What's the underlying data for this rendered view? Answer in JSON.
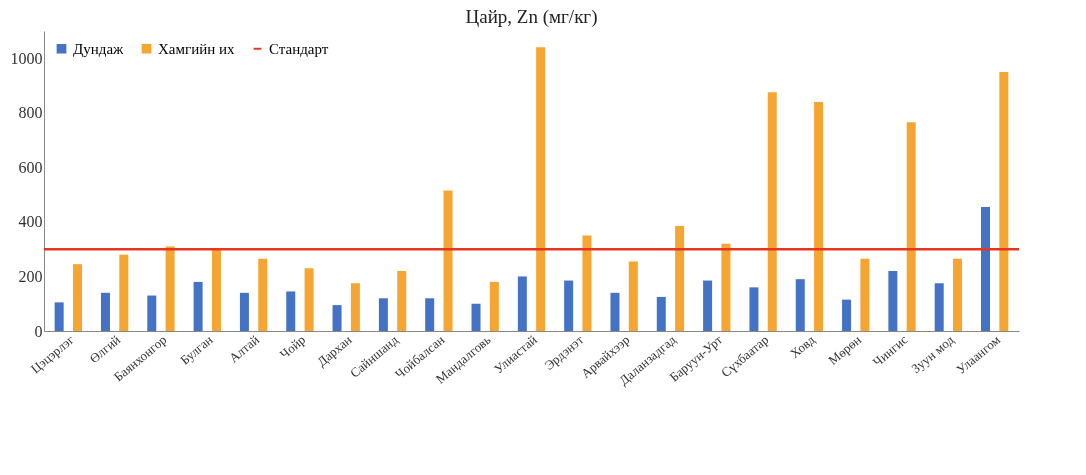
{
  "chart_data": {
    "type": "bar",
    "title": "Цайр, Zn (мг/кг)",
    "categories": [
      "Цэцэрлэг",
      "Өлгий",
      "Баянхонгор",
      "Булган",
      "Алтай",
      "Чойр",
      "Дархан",
      "Сайншанд",
      "Чойбалсан",
      "Мандалговь",
      "Улиастай",
      "Эрдэнэт",
      "Арвайхээр",
      "Даланзадгад",
      "Баруун-Урт",
      "Сүхбаатар",
      "Ховд",
      "Мөрөн",
      "Чингис",
      "Зуун мод",
      "Улаангом"
    ],
    "series": [
      {
        "name": "Дундаж",
        "color": "#4472c4",
        "values": [
          105,
          140,
          130,
          180,
          140,
          145,
          95,
          120,
          120,
          100,
          200,
          185,
          140,
          125,
          185,
          160,
          190,
          115,
          220,
          175,
          455
        ]
      },
      {
        "name": "Хамгийн их",
        "color": "#f5a532",
        "values": [
          245,
          280,
          310,
          300,
          265,
          230,
          175,
          220,
          515,
          180,
          1040,
          350,
          255,
          385,
          320,
          875,
          840,
          265,
          765,
          265,
          950
        ]
      }
    ],
    "ref_lines": [
      {
        "axis": "y",
        "value": 300,
        "label": "Стандарт",
        "color": "#e8351f"
      }
    ],
    "ylim": [
      0,
      1100
    ],
    "yticks": [
      0,
      200,
      400,
      600,
      800,
      1000
    ],
    "grid": false,
    "legend": "top left"
  }
}
